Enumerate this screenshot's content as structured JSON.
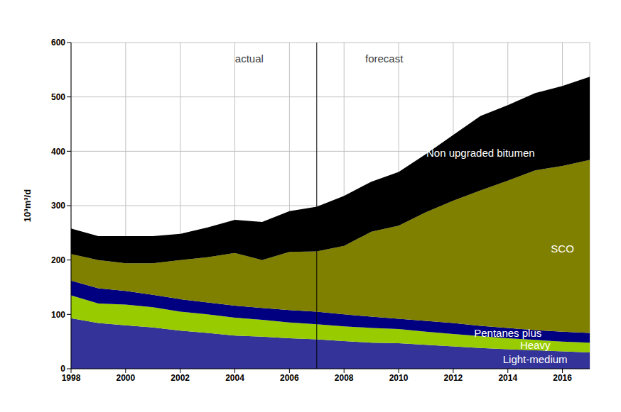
{
  "chart_data": {
    "type": "area",
    "stacked": true,
    "y_label": "10³m³/d",
    "x": [
      1998,
      1999,
      2000,
      2001,
      2002,
      2003,
      2004,
      2005,
      2006,
      2007,
      2008,
      2009,
      2010,
      2011,
      2012,
      2013,
      2014,
      2015,
      2016,
      2017
    ],
    "series": [
      {
        "name": "Light-medium",
        "color": "#333399",
        "values": [
          93,
          84,
          80,
          76,
          70,
          66,
          61,
          59,
          56,
          54,
          51,
          48,
          47,
          44,
          41,
          38,
          36,
          34,
          32,
          30
        ]
      },
      {
        "name": "Heavy",
        "color": "#99cc00",
        "values": [
          42,
          36,
          38,
          37,
          35,
          34,
          33,
          31,
          29,
          28,
          27,
          27,
          26,
          24,
          23,
          22,
          20,
          19,
          18,
          18
        ]
      },
      {
        "name": "Pentanes plus",
        "color": "#000080",
        "values": [
          27,
          28,
          25,
          23,
          23,
          22,
          22,
          22,
          23,
          23,
          22,
          21,
          19,
          20,
          20,
          19,
          19,
          18,
          18,
          18
        ]
      },
      {
        "name": "SCO",
        "color": "#808000",
        "values": [
          49,
          52,
          51,
          58,
          72,
          83,
          97,
          88,
          107,
          111,
          126,
          156,
          171,
          200,
          225,
          249,
          271,
          294,
          305,
          318
        ]
      },
      {
        "name": "Non upgraded bitumen",
        "color": "#000000",
        "values": [
          47,
          44,
          50,
          50,
          48,
          55,
          61,
          70,
          75,
          82,
          92,
          92,
          99,
          107,
          121,
          137,
          139,
          142,
          147,
          153
        ]
      }
    ],
    "xlim": [
      1998,
      2017
    ],
    "xticks": [
      1998,
      2000,
      2002,
      2004,
      2006,
      2008,
      2010,
      2012,
      2014,
      2016
    ],
    "ylim": [
      0,
      600
    ],
    "yticks": [
      0,
      100,
      200,
      300,
      400,
      500,
      600
    ],
    "grid": true,
    "divider_x": 2007,
    "annotations": [
      "actual",
      "forecast"
    ]
  }
}
